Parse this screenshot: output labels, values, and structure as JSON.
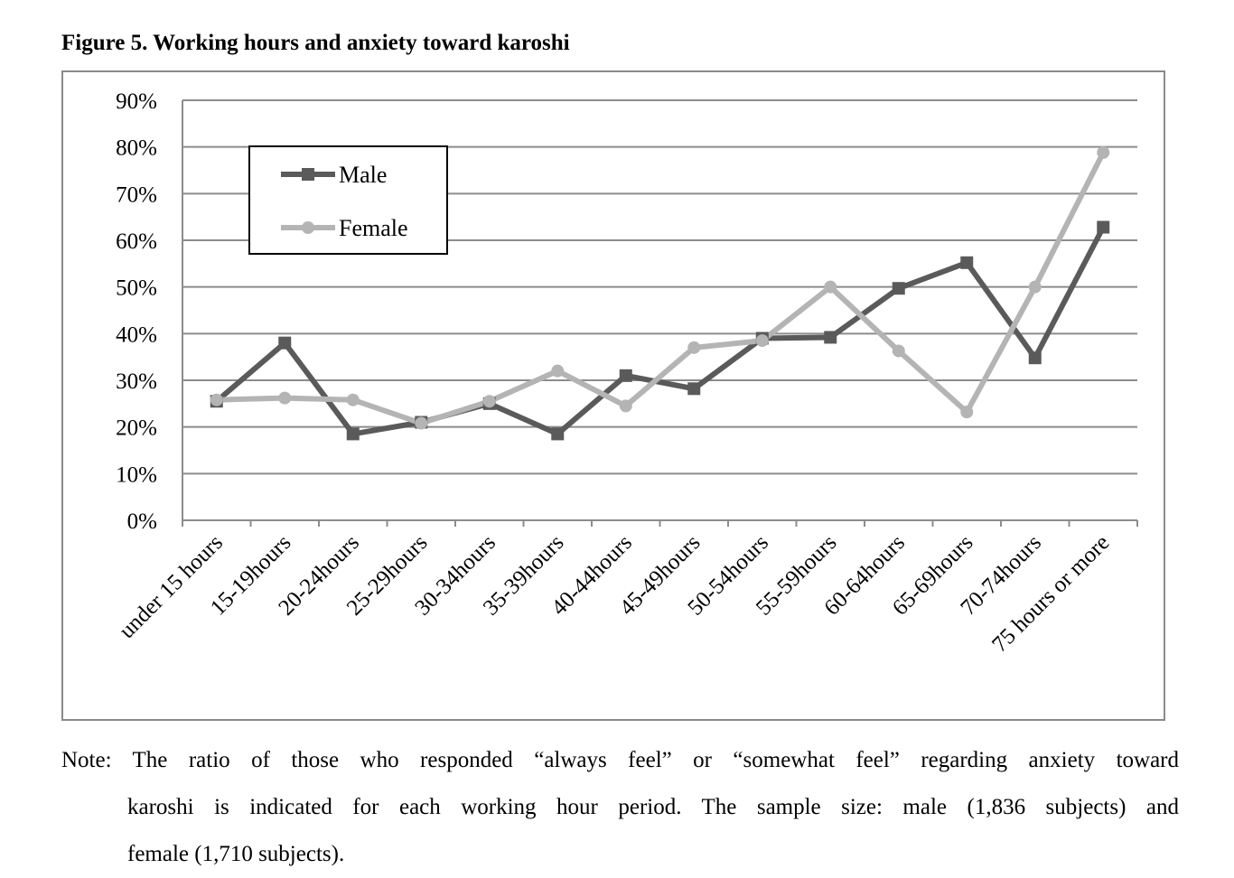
{
  "figure_title": "Figure 5. Working hours and anxiety toward karoshi",
  "note": {
    "line1": "Note: The ratio of those who responded “always feel” or “somewhat feel” regarding anxiety toward",
    "line2": "karoshi is indicated for each working hour period. The sample size: male (1,836 subjects) and",
    "line3": "female (1,710 subjects)."
  },
  "colors": {
    "male": "#5a5a5a",
    "female": "#b4b4b4",
    "grid": "#8c8c8c",
    "axis": "#8c8c8c"
  },
  "chart_data": {
    "type": "line",
    "title": "Figure 5. Working hours and anxiety toward karoshi",
    "xlabel": "",
    "ylabel": "",
    "ylim": [
      0,
      90
    ],
    "yticks": [
      0,
      10,
      20,
      30,
      40,
      50,
      60,
      70,
      80,
      90
    ],
    "ytick_labels": [
      "0%",
      "10%",
      "20%",
      "30%",
      "40%",
      "50%",
      "60%",
      "70%",
      "80%",
      "90%"
    ],
    "categories": [
      "under 15 hours",
      "15-19hours",
      "20-24hours",
      "25-29hours",
      "30-34hours",
      "35-39hours",
      "40-44hours",
      "45-49hours",
      "50-54hours",
      "55-59hours",
      "60-64hours",
      "65-69hours",
      "70-74hours",
      "75 hours or more"
    ],
    "grid": true,
    "legend_position": "top-left",
    "series": [
      {
        "name": "Male",
        "marker": "square",
        "values": [
          25.5,
          38.0,
          18.5,
          21.0,
          25.0,
          18.5,
          31.0,
          28.2,
          39.0,
          39.2,
          49.7,
          55.2,
          34.8,
          62.8
        ]
      },
      {
        "name": "Female",
        "marker": "circle",
        "values": [
          25.8,
          26.2,
          25.8,
          20.8,
          25.5,
          32.0,
          24.5,
          37.0,
          38.5,
          50.0,
          36.3,
          23.2,
          50.0,
          78.8
        ]
      }
    ]
  }
}
